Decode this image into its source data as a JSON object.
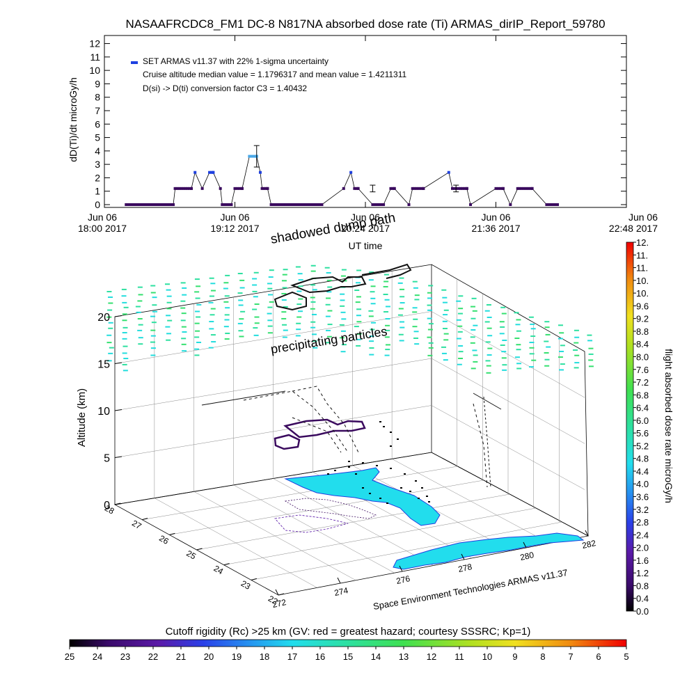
{
  "title": "NASAAFRCDC8_FM1 DC-8   N817NA absorbed dose rate (Ti) ARMAS_dirIP_Report_59780",
  "top_chart": {
    "ylabel": "dD(Ti)/dt microGy/h",
    "xlabel": "UT time",
    "legend": [
      "SET ARMAS v11.37 with 22% 1-sigma uncertainty",
      "Cruise altitude median value = 1.1796317 and mean value = 1.4211311",
      "D(si) -> D(ti) conversion factor C3 = 1.40432"
    ],
    "ytick_labels": [
      "0",
      "1",
      "2",
      "3",
      "4",
      "5",
      "6",
      "7",
      "8",
      "9",
      "10",
      "11",
      "12"
    ],
    "xticks": [
      {
        "line1": "Jun 06",
        "line2": "18:00 2017"
      },
      {
        "line1": "Jun 06",
        "line2": "19:12 2017"
      },
      {
        "line1": "Jun 06",
        "line2": "20:24 2017"
      },
      {
        "line1": "Jun 06",
        "line2": "21:36 2017"
      },
      {
        "line1": "Jun 06",
        "line2": "22:48 2017"
      }
    ]
  },
  "chart_data": [
    {
      "type": "line",
      "title": "NASAAFRCDC8_FM1 DC-8   N817NA absorbed dose rate (Ti) ARMAS_dirIP_Report_59780",
      "xlabel": "UT time",
      "ylabel": "dD(Ti)/dt microGy/h",
      "ylim": [
        0,
        12
      ],
      "xlim": [
        "2017-06-06 18:00",
        "2017-06-06 22:48"
      ],
      "series": [
        {
          "name": "SET ARMAS v11.37 with 22% 1-sigma uncertainty",
          "x": [
            "18:12",
            "18:38",
            "18:39",
            "18:48",
            "18:50",
            "18:54",
            "18:58",
            "19:00",
            "19:04",
            "19:05",
            "19:10",
            "19:12",
            "19:16",
            "19:20",
            "19:24",
            "19:26",
            "19:27",
            "19:30",
            "19:32",
            "19:40",
            "19:48",
            "20:00",
            "20:12",
            "20:16",
            "20:18",
            "20:20",
            "20:28",
            "20:34",
            "20:38",
            "20:40",
            "20:48",
            "20:50",
            "20:56",
            "21:10",
            "21:12",
            "21:20",
            "21:22",
            "21:36",
            "21:40",
            "21:44",
            "21:48",
            "21:56",
            "22:04",
            "22:10"
          ],
          "values": [
            0,
            0,
            1.2,
            1.2,
            2.4,
            1.2,
            2.4,
            2.4,
            1.2,
            0,
            0,
            1.2,
            1.2,
            3.6,
            3.6,
            2.4,
            1.2,
            1.2,
            0,
            0,
            0,
            0,
            1.2,
            2.4,
            1.2,
            1.2,
            0,
            0,
            1.2,
            1.2,
            0,
            1.2,
            1.2,
            2.4,
            1.2,
            1.2,
            0,
            1.2,
            1.2,
            0,
            1.2,
            1.2,
            0,
            0
          ]
        }
      ],
      "error_bars": [
        {
          "x": "19:24",
          "value": 3.6,
          "low": 2.8,
          "high": 4.4
        },
        {
          "x": "20:28",
          "value": 1.2,
          "low": 0.95,
          "high": 1.45
        },
        {
          "x": "21:14",
          "value": 1.2,
          "low": 0.95,
          "high": 1.45
        }
      ]
    },
    {
      "type": "scatter",
      "title": "",
      "zlabel": "Altitude (km)",
      "zlim": [
        0,
        20
      ],
      "zticks": [
        0,
        5,
        10,
        15,
        20
      ],
      "ylabel": "",
      "yticks": [
        28,
        27,
        26,
        25,
        24,
        23,
        22
      ],
      "xlabel": "Space Environment Technologies ARMAS v11.37",
      "xticks": [
        272,
        274,
        276,
        278,
        280,
        282
      ],
      "annotations": [
        "shadowed dump path",
        "precipitating particles"
      ],
      "colorbar_label": "flight absorbed dose rate microGy/h",
      "colorbar_ticks": [
        "0.0",
        "0.4",
        "0.8",
        "1.2",
        "1.6",
        "2.0",
        "2.4",
        "2.8",
        "3.2",
        "3.6",
        "4.0",
        "4.4",
        "4.8",
        "5.2",
        "5.6",
        "6.0",
        "6.4",
        "6.8",
        "7.2",
        "7.6",
        "8.0",
        "8.4",
        "8.8",
        "9.2",
        "9.6",
        "10.",
        "10.",
        "11.",
        "11.",
        "12."
      ]
    },
    {
      "type": "heatmap",
      "title": "Cutoff rigidity (Rc) >25 km (GV: red = greatest hazard; courtesy SSSRC; Kp=1)",
      "colorbar_ticks": [
        "25",
        "24",
        "23",
        "22",
        "21",
        "20",
        "19",
        "18",
        "17",
        "16",
        "15",
        "14",
        "13",
        "12",
        "11",
        "10",
        "9",
        "8",
        "7",
        "6",
        "5"
      ]
    }
  ],
  "colors": {
    "dose_line": "#000000",
    "dose_points": "#3a0a5e",
    "dose_highlight": "#1e40e0",
    "cyan_land": "#22dded",
    "green_particles": "#2de08a"
  }
}
